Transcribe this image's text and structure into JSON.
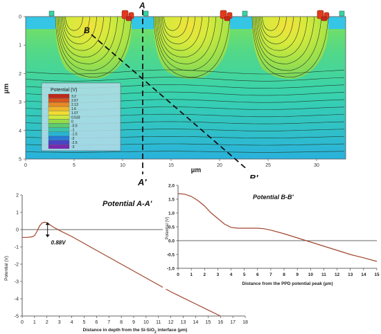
{
  "sim": {
    "y_axis_label": "µm",
    "x_axis_label": "µm",
    "y_ticks": [
      "0",
      "1",
      "2",
      "3",
      "4",
      "5"
    ],
    "x_ticks": [
      "0",
      "5",
      "10",
      "15",
      "20",
      "25",
      "30"
    ],
    "label_A": "A",
    "label_A_prime": "A'",
    "label_B": "B",
    "label_B_prime": "B'",
    "legend": {
      "title": "Potential (V)",
      "entries": [
        {
          "label": "3.2",
          "color": "#c0281c"
        },
        {
          "label": "2.67",
          "color": "#d8561e"
        },
        {
          "label": "2.13",
          "color": "#e88a24"
        },
        {
          "label": "1.6",
          "color": "#f0b429"
        },
        {
          "label": "1.07",
          "color": "#f0dc32"
        },
        {
          "label": "0.533",
          "color": "#cfe83c"
        },
        {
          "label": "0",
          "color": "#96dc4a"
        },
        {
          "label": "-0.5",
          "color": "#5ccc6e"
        },
        {
          "label": "-1",
          "color": "#3cc4a8"
        },
        {
          "label": "-1.5",
          "color": "#28b4d4"
        },
        {
          "label": "-2",
          "color": "#2a7ad8"
        },
        {
          "label": "-2.5",
          "color": "#4a44c8"
        },
        {
          "label": "-3",
          "color": "#7a28b0"
        }
      ]
    },
    "colors": {
      "green_top": "#b8ee3e",
      "cyan_mid": "#34d4b8",
      "cyan_bottom": "#2aa8e4",
      "substrate_light": "#32c8e4",
      "gate": "#e03a1e",
      "contact": "#36d3a5"
    }
  },
  "chart_data": [
    {
      "type": "line",
      "title": "Potential A-A'",
      "annotation": "0.88V",
      "xlabel": "Distance in depth from the Si-SiO2 interface (µm)",
      "xlabel_main": "Distance in depth from the Si-SiO",
      "xlabel_sub": "2",
      "xlabel_tail": " interface (µm)",
      "ylabel": "Potential (V)",
      "xlim": [
        0,
        18
      ],
      "ylim": [
        -5,
        2
      ],
      "x_ticks": [
        0,
        1,
        2,
        3,
        4,
        5,
        6,
        7,
        8,
        9,
        10,
        11,
        12,
        13,
        14,
        15,
        16,
        17,
        18
      ],
      "y_ticks": [
        -5,
        -4,
        -3,
        -2,
        -1,
        0,
        1,
        2
      ],
      "color": "#a0442c",
      "x": [
        0,
        0.4,
        0.8,
        1.0,
        1.2,
        1.4,
        1.6,
        1.8,
        2.0,
        2.2,
        2.5,
        3.0,
        4,
        5,
        6,
        7,
        8,
        9,
        10,
        11,
        12,
        13,
        14,
        15,
        16
      ],
      "y": [
        -0.45,
        -0.45,
        -0.42,
        -0.35,
        -0.1,
        0.2,
        0.38,
        0.43,
        0.4,
        0.3,
        0.15,
        -0.05,
        -0.4,
        -0.8,
        -1.2,
        -1.6,
        -2.0,
        -2.4,
        -2.8,
        -3.2,
        -3.6,
        -3.95,
        -4.3,
        -4.65,
        -5.0
      ]
    },
    {
      "type": "line",
      "title": "Potential B-B'",
      "xlabel": "Distance from the PPD potential peak (µm)",
      "ylabel": "Potential (V)",
      "xlim": [
        0,
        15
      ],
      "ylim": [
        -1.0,
        2.0
      ],
      "x_ticks": [
        0,
        1,
        2,
        3,
        4,
        5,
        6,
        7,
        8,
        9,
        10,
        11,
        12,
        13,
        14,
        15
      ],
      "y_ticks": [
        "2.0",
        "1.5",
        "1.0",
        "0.5",
        "0.0",
        "-0.5",
        "-1.0"
      ],
      "color": "#a0442c",
      "x": [
        0,
        0.5,
        1.0,
        1.5,
        2.0,
        2.5,
        3.0,
        3.5,
        4.0,
        4.5,
        5.0,
        5.5,
        6.0,
        6.5,
        7,
        8,
        9,
        10,
        11,
        12,
        13,
        14,
        15
      ],
      "y": [
        1.7,
        1.68,
        1.6,
        1.45,
        1.25,
        1.0,
        0.8,
        0.6,
        0.48,
        0.45,
        0.45,
        0.45,
        0.45,
        0.43,
        0.38,
        0.25,
        0.1,
        -0.05,
        -0.2,
        -0.35,
        -0.5,
        -0.62,
        -0.75
      ]
    }
  ]
}
